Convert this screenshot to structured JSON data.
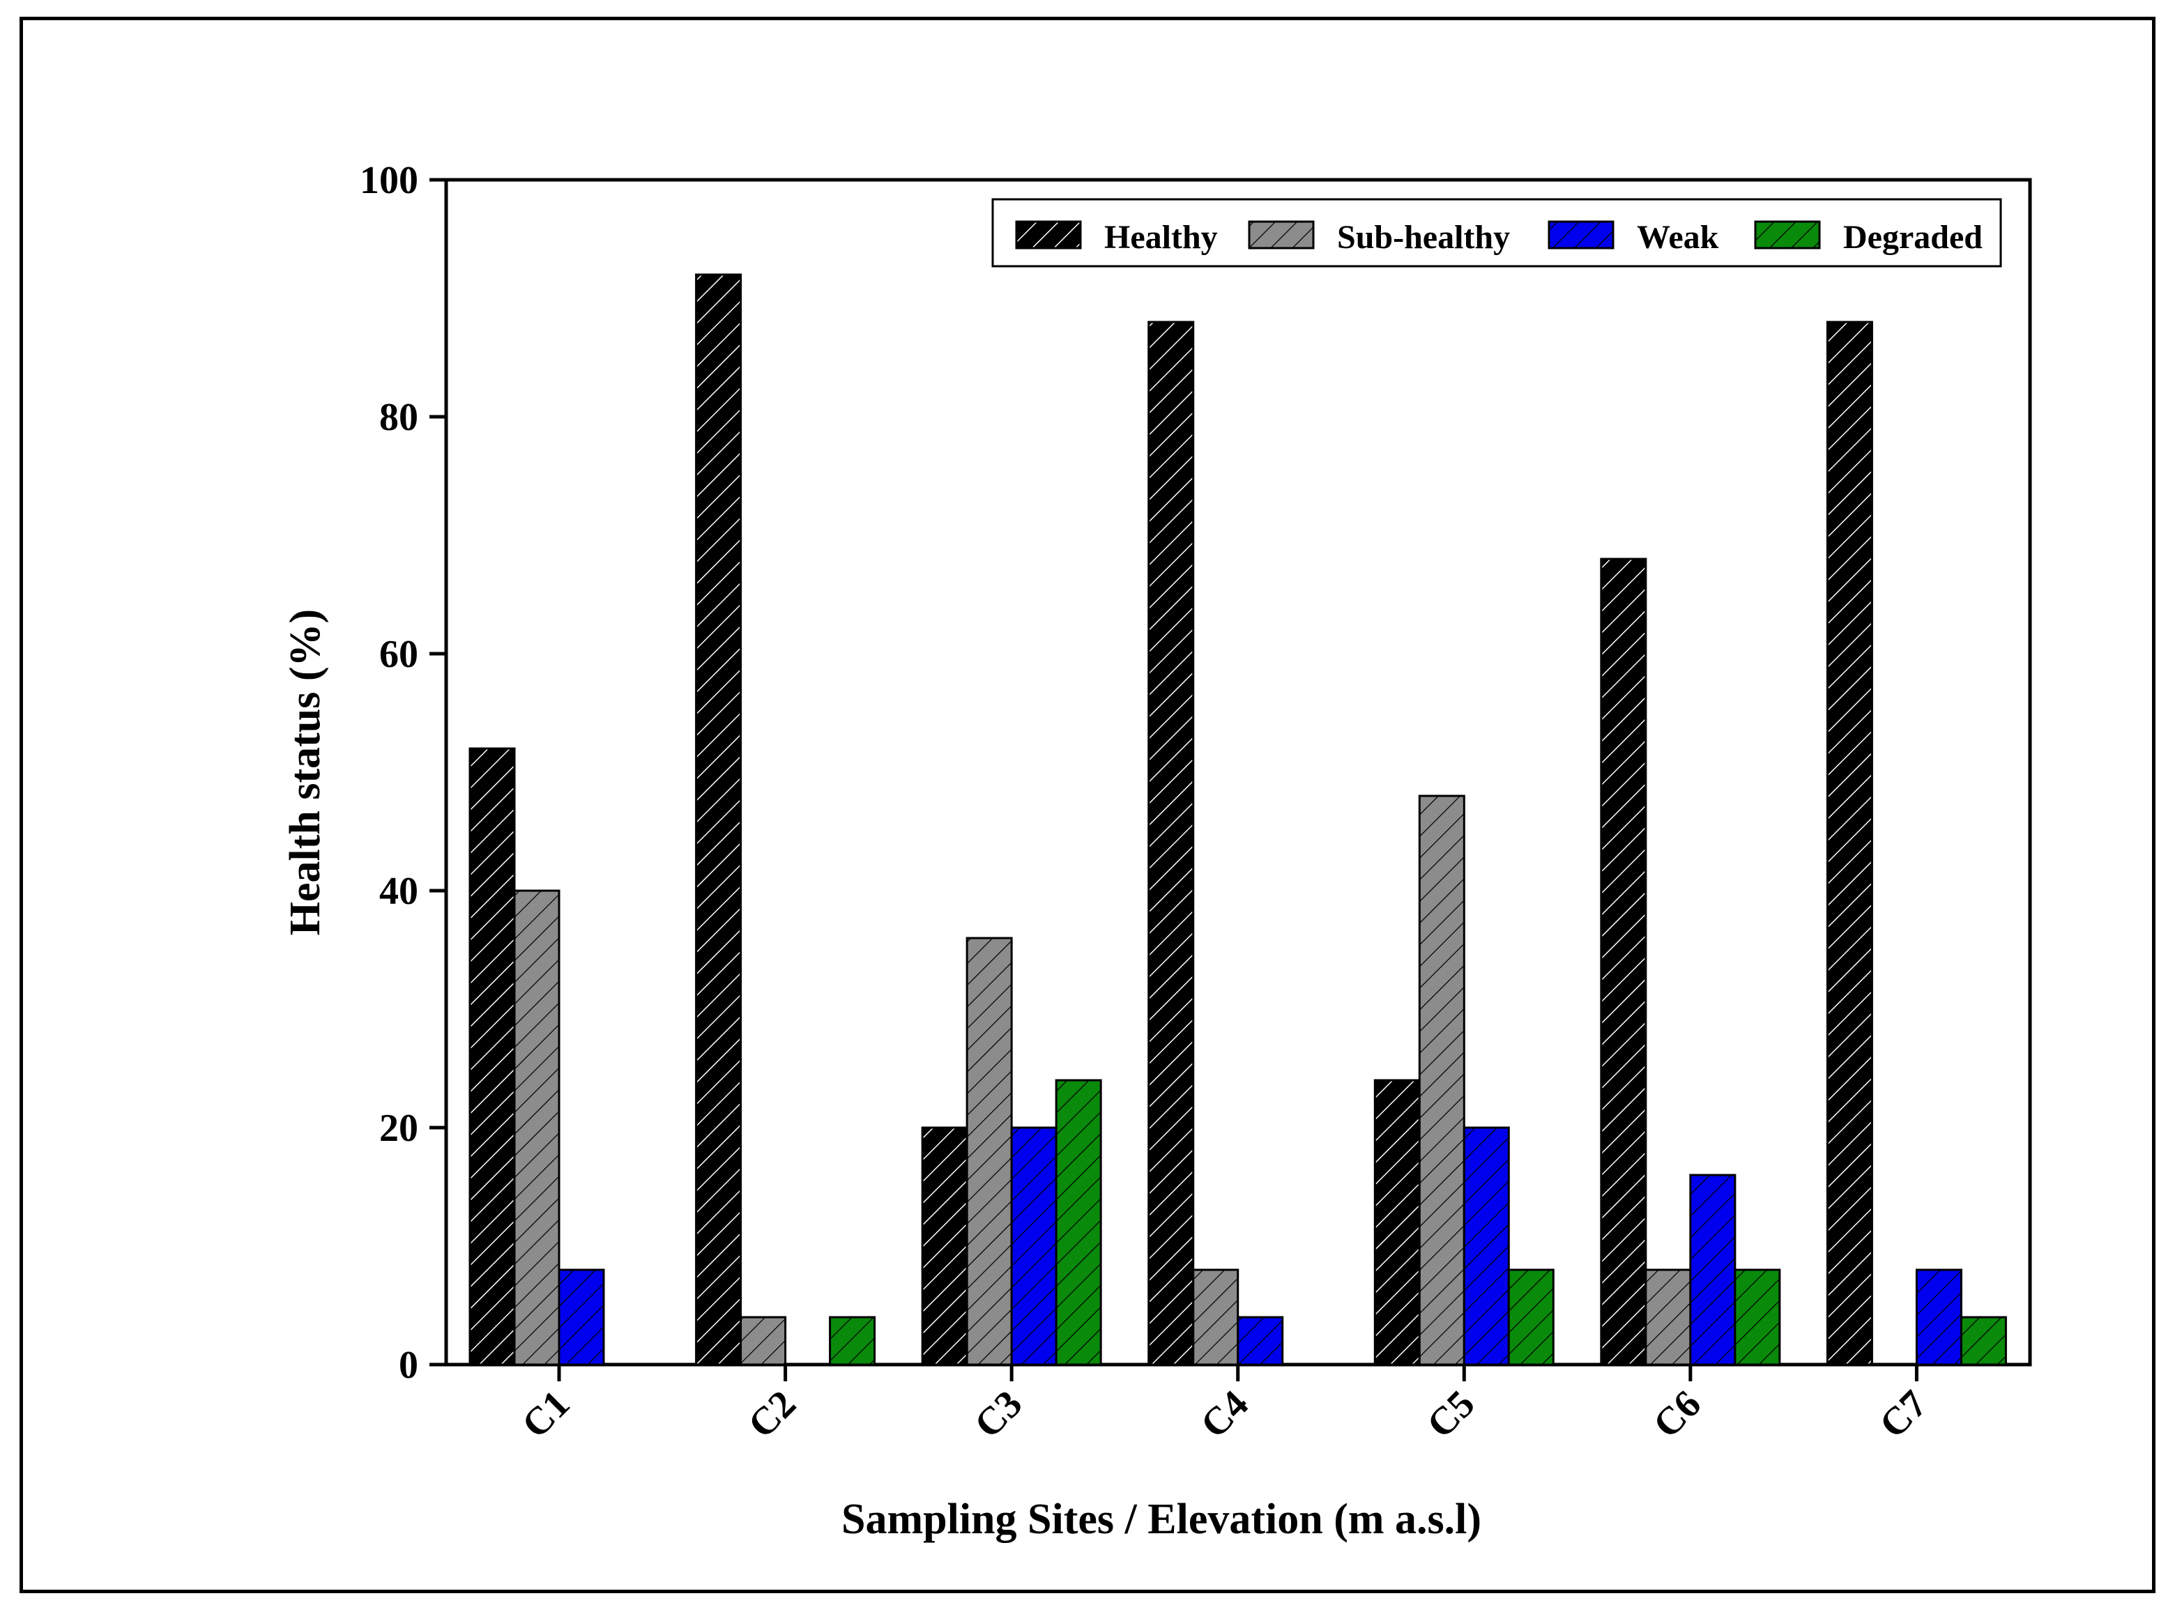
{
  "chart_data": {
    "type": "bar",
    "title": "",
    "xlabel": "Sampling Sites / Elevation (m a.s.l)",
    "ylabel": "Health status (%)",
    "ylim": [
      0,
      100
    ],
    "yticks": [
      "0",
      "20",
      "40",
      "60",
      "80",
      "100"
    ],
    "categories": [
      "C1",
      "C2",
      "C3",
      "C4",
      "C5",
      "C6",
      "C7"
    ],
    "series": [
      {
        "name": "Healthy",
        "color": "#000000",
        "values": [
          52,
          92,
          20,
          88,
          24,
          68,
          88
        ]
      },
      {
        "name": "Sub-healthy",
        "color": "#8c8c8c",
        "values": [
          40,
          4,
          36,
          8,
          48,
          8,
          0
        ]
      },
      {
        "name": "Weak",
        "color": "#0000ee",
        "values": [
          8,
          0,
          20,
          4,
          20,
          16,
          8
        ]
      },
      {
        "name": "Degraded",
        "color": "#0a8a0a",
        "values": [
          0,
          4,
          24,
          0,
          8,
          8,
          4
        ]
      }
    ],
    "legend_position": "top-right",
    "grid": false
  }
}
